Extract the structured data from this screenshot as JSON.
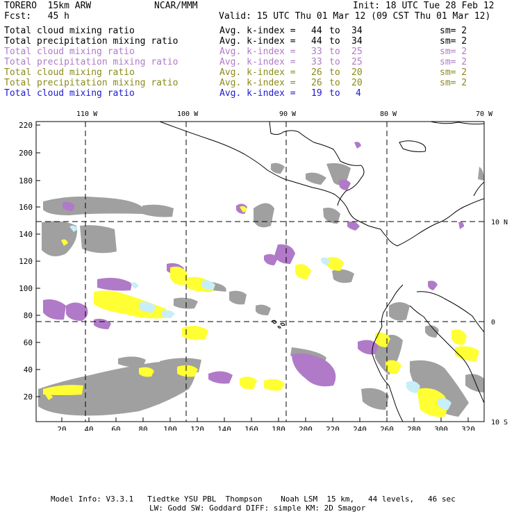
{
  "header": {
    "model": "TORERO  15km ARW",
    "institute": "NCAR/MMM",
    "init": "Init: 18 UTC Tue 28 Feb 12",
    "fcst": "Fcst:   45 h",
    "valid": "Valid: 15 UTC Thu 01 Mar 12 (09 CST Thu 01 Mar 12)"
  },
  "legend": [
    {
      "field": "Total cloud mixing ratio",
      "index": "Avg. k-index = ",
      "from": "44",
      "to_word": "to",
      "to": "34",
      "sm": "sm= 2",
      "color": "#000000"
    },
    {
      "field": "Total precipitation mixing ratio",
      "index": "Avg. k-index = ",
      "from": "44",
      "to_word": "to",
      "to": "34",
      "sm": "sm= 2",
      "color": "#000000"
    },
    {
      "field": "Total cloud mixing ratio",
      "index": "Avg. k-index = ",
      "from": "33",
      "to_word": "to",
      "to": "25",
      "sm": "sm= 2",
      "color": "#b07ac8"
    },
    {
      "field": "Total precipitation mixing ratio",
      "index": "Avg. k-index = ",
      "from": "33",
      "to_word": "to",
      "to": "25",
      "sm": "sm= 2",
      "color": "#b07ac8"
    },
    {
      "field": "Total cloud mixing ratio",
      "index": "Avg. k-index = ",
      "from": "26",
      "to_word": "to",
      "to": "20",
      "sm": "sm= 2",
      "color": "#8a8a1a"
    },
    {
      "field": "Total precipitation mixing ratio",
      "index": "Avg. k-index = ",
      "from": "26",
      "to_word": "to",
      "to": "20",
      "sm": "sm= 2",
      "color": "#8a8a1a"
    },
    {
      "field": "Total cloud mixing ratio",
      "index": "Avg. k-index = ",
      "from": "19",
      "to_word": "to",
      "to": "4",
      "sm": "",
      "color": "#1a1ad0"
    }
  ],
  "map": {
    "lon_labels": [
      "110 W",
      "100 W",
      "90 W",
      "80 W",
      "70 W"
    ],
    "lat_labels": [
      "10 N",
      "0",
      "10 S"
    ],
    "y_ticks": [
      "220",
      "200",
      "180",
      "160",
      "140",
      "120",
      "100",
      "80",
      "60",
      "40",
      "20"
    ],
    "x_ticks": [
      "20",
      "40",
      "60",
      "80",
      "100",
      "120",
      "140",
      "160",
      "180",
      "200",
      "220",
      "240",
      "260",
      "280",
      "300",
      "320"
    ],
    "colors": {
      "gray": "#a0a0a0",
      "purple": "#b07ac8",
      "yellow": "#ffff33",
      "lightblue": "#c8eefa"
    }
  },
  "footer": {
    "line1": "Model Info: V3.3.1   Tiedtke YSU PBL  Thompson    Noah LSM  15 km,   44 levels,   46 sec",
    "line2": "LW: Godd SW: Goddard DIFF: simple KM: 2D Smagor"
  }
}
